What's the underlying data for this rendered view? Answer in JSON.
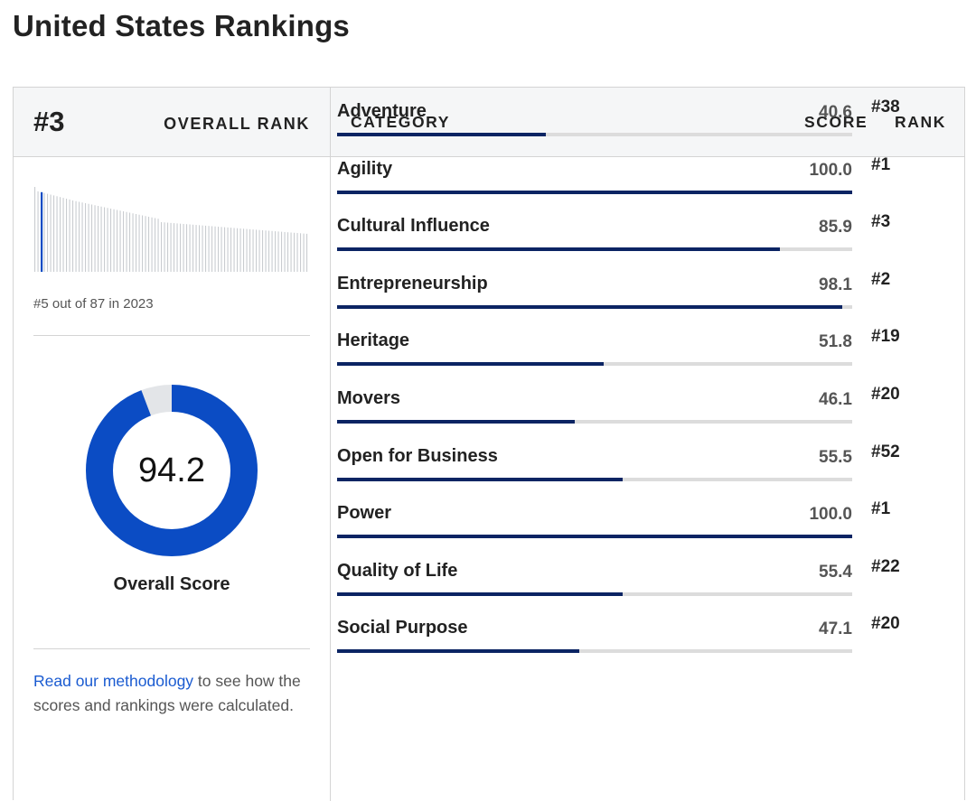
{
  "page": {
    "title": "United States Rankings"
  },
  "overall": {
    "rank": "#3",
    "rank_label": "OVERALL RANK",
    "previous": "#5 out of 87 in 2023",
    "score": "94.2",
    "score_value": 94.2,
    "score_label": "Overall Score",
    "methodology_link": "Read our methodology",
    "methodology_text": " to see how the scores and rankings were calculated."
  },
  "colors": {
    "accent": "#0b4cc4",
    "bar_fill": "#0b2463",
    "track": "#dcdcdc",
    "link": "#1a5bd1"
  },
  "table": {
    "headers": {
      "category": "CATEGORY",
      "score": "SCORE",
      "rank": "RANK"
    },
    "rows": [
      {
        "category": "Adventure",
        "score": "40.6",
        "rank": "#38"
      },
      {
        "category": "Agility",
        "score": "100.0",
        "rank": "#1"
      },
      {
        "category": "Cultural Influence",
        "score": "85.9",
        "rank": "#3"
      },
      {
        "category": "Entrepreneurship",
        "score": "98.1",
        "rank": "#2"
      },
      {
        "category": "Heritage",
        "score": "51.8",
        "rank": "#19"
      },
      {
        "category": "Movers",
        "score": "46.1",
        "rank": "#20"
      },
      {
        "category": "Open for Business",
        "score": "55.5",
        "rank": "#52"
      },
      {
        "category": "Power",
        "score": "100.0",
        "rank": "#1"
      },
      {
        "category": "Quality of Life",
        "score": "55.4",
        "rank": "#22"
      },
      {
        "category": "Social Purpose",
        "score": "47.1",
        "rank": "#20"
      }
    ]
  }
}
